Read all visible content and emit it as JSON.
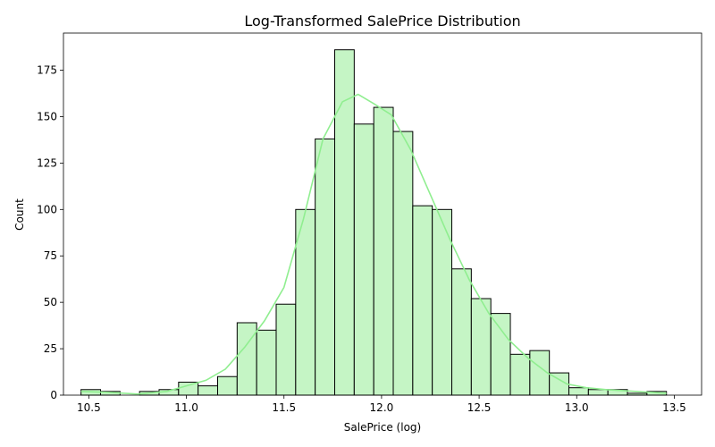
{
  "chart_data": {
    "type": "bar",
    "title": "Log-Transformed SalePrice Distribution",
    "xlabel": "SalePrice (log)",
    "ylabel": "Count",
    "xlim": [
      10.37,
      13.64
    ],
    "ylim": [
      0,
      195
    ],
    "xticks": [
      10.5,
      11.0,
      11.5,
      12.0,
      12.5,
      13.0,
      13.5
    ],
    "xtick_labels": [
      "10.5",
      "11.0",
      "11.5",
      "12.0",
      "12.5",
      "13.0",
      "13.5"
    ],
    "yticks": [
      0,
      25,
      50,
      75,
      100,
      125,
      150,
      175
    ],
    "ytick_labels": [
      "0",
      "25",
      "50",
      "75",
      "100",
      "125",
      "150",
      "175"
    ],
    "bins": [
      {
        "x0": 10.46,
        "x1": 10.56,
        "count": 3
      },
      {
        "x0": 10.56,
        "x1": 10.66,
        "count": 2
      },
      {
        "x0": 10.66,
        "x1": 10.76,
        "count": 0
      },
      {
        "x0": 10.76,
        "x1": 10.86,
        "count": 2
      },
      {
        "x0": 10.86,
        "x1": 10.96,
        "count": 3
      },
      {
        "x0": 10.96,
        "x1": 11.06,
        "count": 7
      },
      {
        "x0": 11.06,
        "x1": 11.16,
        "count": 5
      },
      {
        "x0": 11.16,
        "x1": 11.26,
        "count": 10
      },
      {
        "x0": 11.26,
        "x1": 11.36,
        "count": 39
      },
      {
        "x0": 11.36,
        "x1": 11.46,
        "count": 35
      },
      {
        "x0": 11.46,
        "x1": 11.56,
        "count": 49
      },
      {
        "x0": 11.56,
        "x1": 11.66,
        "count": 100
      },
      {
        "x0": 11.66,
        "x1": 11.76,
        "count": 138
      },
      {
        "x0": 11.76,
        "x1": 11.86,
        "count": 186
      },
      {
        "x0": 11.86,
        "x1": 11.96,
        "count": 146
      },
      {
        "x0": 11.96,
        "x1": 12.06,
        "count": 155
      },
      {
        "x0": 12.06,
        "x1": 12.16,
        "count": 142
      },
      {
        "x0": 12.16,
        "x1": 12.26,
        "count": 102
      },
      {
        "x0": 12.26,
        "x1": 12.36,
        "count": 100
      },
      {
        "x0": 12.36,
        "x1": 12.46,
        "count": 68
      },
      {
        "x0": 12.46,
        "x1": 12.56,
        "count": 52
      },
      {
        "x0": 12.56,
        "x1": 12.66,
        "count": 44
      },
      {
        "x0": 12.66,
        "x1": 12.76,
        "count": 22
      },
      {
        "x0": 12.76,
        "x1": 12.86,
        "count": 24
      },
      {
        "x0": 12.86,
        "x1": 12.96,
        "count": 12
      },
      {
        "x0": 12.96,
        "x1": 13.06,
        "count": 4
      },
      {
        "x0": 13.06,
        "x1": 13.16,
        "count": 3
      },
      {
        "x0": 13.16,
        "x1": 13.26,
        "count": 3
      },
      {
        "x0": 13.26,
        "x1": 13.36,
        "count": 1
      },
      {
        "x0": 13.36,
        "x1": 13.46,
        "count": 2
      }
    ],
    "kde": [
      [
        10.46,
        2
      ],
      [
        10.6,
        1.5
      ],
      [
        10.75,
        0.6
      ],
      [
        10.9,
        2
      ],
      [
        11.0,
        5
      ],
      [
        11.1,
        8
      ],
      [
        11.2,
        14
      ],
      [
        11.3,
        26
      ],
      [
        11.4,
        40
      ],
      [
        11.5,
        58
      ],
      [
        11.6,
        95
      ],
      [
        11.7,
        138
      ],
      [
        11.8,
        158
      ],
      [
        11.88,
        162
      ],
      [
        11.96,
        157
      ],
      [
        12.05,
        151
      ],
      [
        12.15,
        132
      ],
      [
        12.25,
        108
      ],
      [
        12.35,
        84
      ],
      [
        12.45,
        62
      ],
      [
        12.55,
        44
      ],
      [
        12.65,
        30
      ],
      [
        12.75,
        20
      ],
      [
        12.85,
        12
      ],
      [
        12.95,
        6
      ],
      [
        13.05,
        4
      ],
      [
        13.15,
        3
      ],
      [
        13.3,
        2
      ],
      [
        13.46,
        1
      ]
    ],
    "colors": {
      "bar_fill": "#c5f5c5",
      "bar_edge": "#000000",
      "kde_line": "#90ee90"
    },
    "grid": false,
    "legend": "none"
  }
}
